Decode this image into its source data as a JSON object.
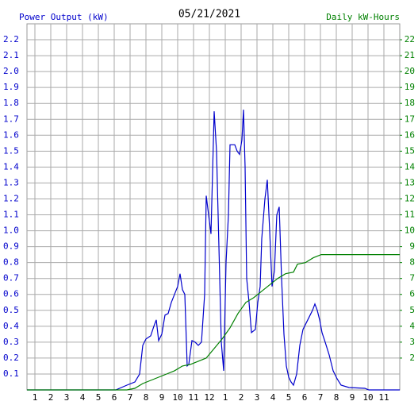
{
  "chart_data": {
    "type": "line",
    "title": "05/21/2021",
    "y_label": "Power Output (kW)",
    "y2_label": "Daily kW-Hours",
    "xlim": [
      0.5,
      24
    ],
    "xticks": [
      1,
      2,
      3,
      4,
      5,
      6,
      7,
      8,
      9,
      10,
      11,
      12,
      {
        "value": 13,
        "label": "1"
      },
      {
        "value": 14,
        "label": "2"
      },
      {
        "value": 15,
        "label": "3"
      },
      {
        "value": 16,
        "label": "4"
      },
      {
        "value": 17,
        "label": "5"
      },
      {
        "value": 18,
        "label": "6"
      },
      {
        "value": 19,
        "label": "7"
      },
      {
        "value": 20,
        "label": "8"
      },
      {
        "value": 21,
        "label": "9"
      },
      {
        "value": 22,
        "label": "10"
      },
      {
        "value": 23,
        "label": "11"
      }
    ],
    "ylim": [
      0,
      2.3
    ],
    "yticks": [
      0.1,
      0.2,
      0.3,
      0.4,
      0.5,
      0.6,
      0.7,
      0.8,
      0.9,
      {
        "value": 1,
        "label": "1.0"
      },
      1.1,
      1.2,
      1.3,
      1.4,
      1.5,
      1.6,
      1.7,
      1.8,
      1.9,
      {
        "value": 2,
        "label": "2.0"
      },
      2.1,
      2.2
    ],
    "y2lim": [
      0,
      23
    ],
    "y2ticks": [
      2,
      3,
      4,
      5,
      6,
      7,
      8,
      9,
      10,
      11,
      12,
      13,
      14,
      15,
      16,
      17,
      18,
      19,
      20,
      21,
      22
    ],
    "grid": true,
    "series": [
      {
        "name": "Power Output",
        "color": "#0000cc",
        "axis": "y",
        "x": [
          0.5,
          6.1,
          6.8,
          7.3,
          7.6,
          7.8,
          8.0,
          8.3,
          8.5,
          8.65,
          8.8,
          9.0,
          9.2,
          9.4,
          9.6,
          9.8,
          10.0,
          10.15,
          10.3,
          10.45,
          10.6,
          10.7,
          10.9,
          11.1,
          11.3,
          11.5,
          11.7,
          11.8,
          11.95,
          12.1,
          12.3,
          12.45,
          12.6,
          12.75,
          12.9,
          13.05,
          13.2,
          13.3,
          13.6,
          13.75,
          13.9,
          14.05,
          14.15,
          14.25,
          14.35,
          14.5,
          14.65,
          14.9,
          15.05,
          15.2,
          15.3,
          15.5,
          15.65,
          15.8,
          15.95,
          16.1,
          16.25,
          16.4,
          16.55,
          16.7,
          16.85,
          17.0,
          17.15,
          17.3,
          17.5,
          17.7,
          17.9,
          18.1,
          18.3,
          18.5,
          18.65,
          18.8,
          18.95,
          19.1,
          19.3,
          19.55,
          19.8,
          20.05,
          20.3,
          20.8,
          21.8,
          22.05,
          24
        ],
        "values": [
          0,
          0,
          0.03,
          0.05,
          0.1,
          0.28,
          0.32,
          0.34,
          0.4,
          0.44,
          0.31,
          0.35,
          0.47,
          0.48,
          0.55,
          0.6,
          0.65,
          0.73,
          0.63,
          0.6,
          0.15,
          0.16,
          0.31,
          0.3,
          0.28,
          0.3,
          0.6,
          1.22,
          1.1,
          0.98,
          1.75,
          1.5,
          0.9,
          0.3,
          0.12,
          0.8,
          1.1,
          1.54,
          1.54,
          1.5,
          1.48,
          1.57,
          1.76,
          1.4,
          0.7,
          0.55,
          0.36,
          0.38,
          0.55,
          0.65,
          0.95,
          1.2,
          1.32,
          1.0,
          0.65,
          0.75,
          1.1,
          1.15,
          0.7,
          0.35,
          0.15,
          0.08,
          0.05,
          0.03,
          0.1,
          0.28,
          0.38,
          0.42,
          0.46,
          0.5,
          0.54,
          0.5,
          0.44,
          0.36,
          0.3,
          0.22,
          0.12,
          0.07,
          0.03,
          0.015,
          0.01,
          0,
          0
        ]
      },
      {
        "name": "Daily kW-Hours",
        "color": "#008000",
        "axis": "y2",
        "x": [
          0.5,
          6.8,
          7.3,
          7.8,
          8.3,
          8.8,
          9.3,
          9.8,
          10.3,
          10.8,
          11.3,
          11.8,
          12.3,
          12.8,
          13.3,
          13.8,
          14.3,
          14.8,
          15.3,
          15.8,
          16.3,
          16.8,
          17.3,
          17.55,
          18.05,
          18.55,
          19.05,
          19.55,
          24
        ],
        "values": [
          0,
          0,
          0.1,
          0.4,
          0.6,
          0.8,
          1.0,
          1.2,
          1.5,
          1.6,
          1.8,
          2.0,
          2.6,
          3.2,
          3.9,
          4.8,
          5.5,
          5.8,
          6.2,
          6.6,
          7.0,
          7.3,
          7.4,
          7.9,
          8.0,
          8.3,
          8.5,
          8.5,
          8.5
        ]
      }
    ]
  }
}
